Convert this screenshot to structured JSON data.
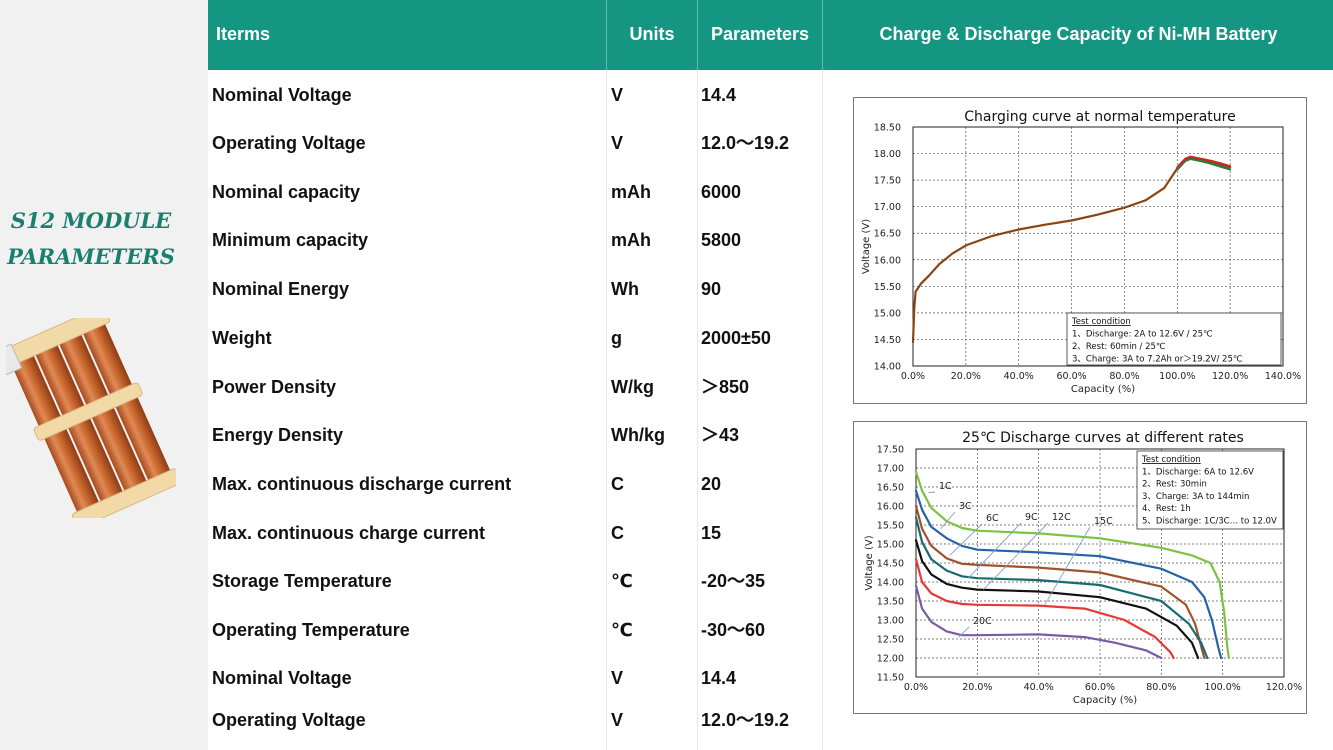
{
  "title_lines": [
    "S12 MODULE",
    "PARAMETERS"
  ],
  "header": {
    "items": "Iterms",
    "units": "Units",
    "parameters": "Parameters",
    "chart_title": "Charge & Discharge Capacity of Ni-MH Battery"
  },
  "rows": [
    {
      "name": "Nominal Voltage",
      "unit": "V",
      "value": "14.4"
    },
    {
      "name": "Operating Voltage",
      "unit": "V",
      "value": "12.0～19.2"
    },
    {
      "name": "Nominal capacity",
      "unit": "mAh",
      "value": "6000"
    },
    {
      "name": "Minimum capacity",
      "unit": "mAh",
      "value": "5800"
    },
    {
      "name": "Nominal Energy",
      "unit": "Wh",
      "value": "90"
    },
    {
      "name": "Weight",
      "unit": "g",
      "value": "2000±50"
    },
    {
      "name": "Power Density",
      "unit": "W/kg",
      "value": "＞850"
    },
    {
      "name": "Energy Density",
      "unit": "Wh/kg",
      "value": "＞43"
    },
    {
      "name": "Max. continuous discharge current",
      "unit": "C",
      "value": "20"
    },
    {
      "name": "Max. continuous charge current",
      "unit": "C",
      "value": "15"
    },
    {
      "name": "Storage Temperature",
      "unit": "℃",
      "value": "-20～35"
    },
    {
      "name": "Operating Temperature",
      "unit": "℃",
      "value": "-30～60"
    },
    {
      "name": "Nominal Voltage",
      "unit": "V",
      "value": "14.4"
    },
    {
      "name": "Operating Voltage",
      "unit": "V",
      "value": "12.0～19.2"
    }
  ],
  "colors": {
    "header_bg": "#149682",
    "title_color": "#1a7f6e",
    "left_panel_bg": "#f1f1f1"
  },
  "chart_data": [
    {
      "type": "line",
      "title": "Charging curve at normal temperature",
      "xlabel": "Capacity (%)",
      "ylabel": "Voltage (V)",
      "xlim": [
        0,
        140
      ],
      "ylim": [
        14.0,
        18.5
      ],
      "x_ticks": [
        "0.0%",
        "20.0%",
        "40.0%",
        "60.0%",
        "80.0%",
        "100.0%",
        "120.0%",
        "140.0%"
      ],
      "y_ticks": [
        "14.00",
        "14.50",
        "15.00",
        "15.50",
        "16.00",
        "16.50",
        "17.00",
        "17.50",
        "18.00",
        "18.50"
      ],
      "grid": true,
      "series": [
        {
          "color": "#8b4513",
          "points": [
            [
              0,
              14.45
            ],
            [
              0.5,
              15.1
            ],
            [
              1,
              15.4
            ],
            [
              3,
              15.55
            ],
            [
              6,
              15.7
            ],
            [
              10,
              15.92
            ],
            [
              15,
              16.12
            ],
            [
              20,
              16.27
            ],
            [
              30,
              16.45
            ],
            [
              40,
              16.57
            ],
            [
              50,
              16.66
            ],
            [
              60,
              16.74
            ],
            [
              70,
              16.85
            ],
            [
              80,
              16.98
            ],
            [
              88,
              17.12
            ],
            [
              95,
              17.35
            ],
            [
              100,
              17.72
            ],
            [
              103,
              17.88
            ],
            [
              105,
              17.92
            ],
            [
              108,
              17.9
            ],
            [
              112,
              17.85
            ],
            [
              116,
              17.8
            ],
            [
              120,
              17.74
            ]
          ]
        },
        {
          "color": "#2e7d32",
          "points": [
            [
              100,
              17.7
            ],
            [
              103,
              17.86
            ],
            [
              105,
              17.9
            ],
            [
              108,
              17.87
            ],
            [
              112,
              17.82
            ],
            [
              116,
              17.76
            ],
            [
              120,
              17.7
            ]
          ]
        },
        {
          "color": "#c62828",
          "points": [
            [
              100,
              17.74
            ],
            [
              103,
              17.9
            ],
            [
              105,
              17.94
            ],
            [
              108,
              17.91
            ],
            [
              112,
              17.87
            ],
            [
              116,
              17.82
            ],
            [
              120,
              17.76
            ]
          ]
        }
      ],
      "legend": {
        "position": "bottom-right",
        "lines": [
          "Test condition",
          "1、Discharge: 2A to 12.6V / 25℃",
          "2、Rest: 60min / 25℃",
          "3、Charge: 3A  to 7.2Ah or＞19.2V/ 25℃"
        ]
      }
    },
    {
      "type": "line",
      "title": "25℃ Discharge curves at different rates",
      "xlabel": "Capacity (%)",
      "ylabel": "Voltage (V)",
      "xlim": [
        0,
        120
      ],
      "ylim": [
        11.5,
        17.5
      ],
      "x_ticks": [
        "0.0%",
        "20.0%",
        "40.0%",
        "60.0%",
        "80.0%",
        "100.0%",
        "120.0%"
      ],
      "y_ticks": [
        "11.50",
        "12.00",
        "12.50",
        "13.00",
        "13.50",
        "14.00",
        "14.50",
        "15.00",
        "15.50",
        "16.00",
        "16.50",
        "17.00",
        "17.50"
      ],
      "grid": true,
      "series": [
        {
          "name": "1C",
          "color": "#7cc242",
          "points": [
            [
              0,
              16.9
            ],
            [
              2,
              16.4
            ],
            [
              5,
              15.95
            ],
            [
              10,
              15.6
            ],
            [
              15,
              15.42
            ],
            [
              20,
              15.35
            ],
            [
              40,
              15.28
            ],
            [
              60,
              15.15
            ],
            [
              80,
              14.9
            ],
            [
              90,
              14.7
            ],
            [
              96,
              14.5
            ],
            [
              99,
              14.0
            ],
            [
              100.5,
              13.2
            ],
            [
              101.5,
              12.3
            ],
            [
              102,
              12.0
            ]
          ]
        },
        {
          "name": "3C",
          "color": "#2563a8",
          "points": [
            [
              0,
              16.4
            ],
            [
              2,
              15.9
            ],
            [
              5,
              15.45
            ],
            [
              10,
              15.15
            ],
            [
              15,
              14.95
            ],
            [
              20,
              14.85
            ],
            [
              40,
              14.78
            ],
            [
              60,
              14.68
            ],
            [
              80,
              14.35
            ],
            [
              90,
              14.0
            ],
            [
              94,
              13.6
            ],
            [
              96.5,
              13.0
            ],
            [
              98.5,
              12.3
            ],
            [
              99.5,
              12.0
            ]
          ]
        },
        {
          "name": "6C",
          "color": "#a0522d",
          "points": [
            [
              0,
              16.0
            ],
            [
              2,
              15.4
            ],
            [
              5,
              14.95
            ],
            [
              10,
              14.62
            ],
            [
              15,
              14.48
            ],
            [
              20,
              14.45
            ],
            [
              40,
              14.38
            ],
            [
              60,
              14.25
            ],
            [
              80,
              13.88
            ],
            [
              88,
              13.4
            ],
            [
              91,
              12.9
            ],
            [
              93,
              12.3
            ],
            [
              94,
              12.0
            ]
          ]
        },
        {
          "name": "9C",
          "color": "#1a6a70",
          "points": [
            [
              0,
              15.7
            ],
            [
              2,
              15.05
            ],
            [
              5,
              14.6
            ],
            [
              10,
              14.3
            ],
            [
              15,
              14.15
            ],
            [
              20,
              14.1
            ],
            [
              40,
              14.05
            ],
            [
              60,
              13.92
            ],
            [
              80,
              13.5
            ],
            [
              89,
              12.9
            ],
            [
              93,
              12.4
            ],
            [
              95,
              12.0
            ]
          ]
        },
        {
          "name": "12C",
          "color": "#111111",
          "points": [
            [
              0,
              15.1
            ],
            [
              2,
              14.55
            ],
            [
              5,
              14.2
            ],
            [
              10,
              13.95
            ],
            [
              15,
              13.85
            ],
            [
              20,
              13.8
            ],
            [
              40,
              13.75
            ],
            [
              60,
              13.6
            ],
            [
              75,
              13.3
            ],
            [
              85,
              12.85
            ],
            [
              90,
              12.4
            ],
            [
              92,
              12.0
            ]
          ]
        },
        {
          "name": "15C",
          "color": "#e53935",
          "points": [
            [
              0,
              14.6
            ],
            [
              2,
              14.0
            ],
            [
              5,
              13.7
            ],
            [
              10,
              13.5
            ],
            [
              15,
              13.42
            ],
            [
              20,
              13.4
            ],
            [
              40,
              13.38
            ],
            [
              55,
              13.3
            ],
            [
              68,
              13.0
            ],
            [
              78,
              12.55
            ],
            [
              83,
              12.15
            ],
            [
              84,
              12.0
            ]
          ]
        },
        {
          "name": "20C",
          "color": "#7b5aa6",
          "points": [
            [
              0,
              13.9
            ],
            [
              2,
              13.3
            ],
            [
              5,
              12.95
            ],
            [
              10,
              12.7
            ],
            [
              15,
              12.6
            ],
            [
              20,
              12.6
            ],
            [
              40,
              12.62
            ],
            [
              55,
              12.55
            ],
            [
              65,
              12.4
            ],
            [
              75,
              12.2
            ],
            [
              80,
              12.0
            ]
          ]
        }
      ],
      "legend": {
        "position": "top-right",
        "lines": [
          "Test condition",
          "1、Discharge: 6A to 12.6V",
          "2、Rest: 30min",
          "3、Charge: 3A  to 144min",
          "4、Rest: 1h",
          "5、Discharge: 1C/3C… to 12.0V"
        ]
      }
    }
  ]
}
